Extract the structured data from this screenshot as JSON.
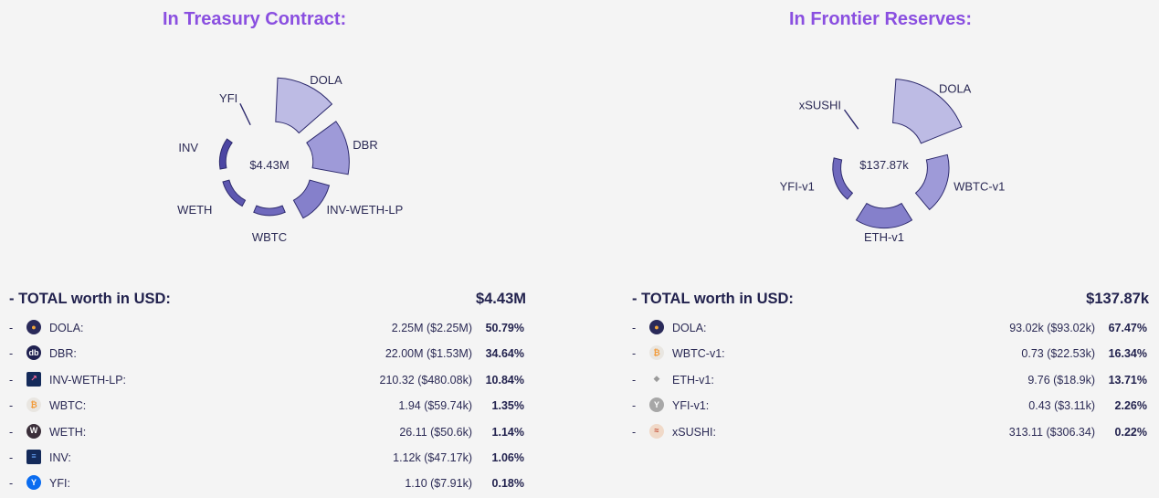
{
  "treasury": {
    "title": "In Treasury Contract:",
    "total_label": "- TOTAL worth in USD:",
    "total_value": "$4.43M",
    "rows": [
      {
        "name": "DOLA:",
        "amount": "2.25M ($2.25M)",
        "percent": "50.79%",
        "icon": "dola-icon"
      },
      {
        "name": "DBR:",
        "amount": "22.00M ($1.53M)",
        "percent": "34.64%",
        "icon": "dbr-icon"
      },
      {
        "name": "INV-WETH-LP:",
        "amount": "210.32 ($480.08k)",
        "percent": "10.84%",
        "icon": "inv-weth-lp-icon"
      },
      {
        "name": "WBTC:",
        "amount": "1.94 ($59.74k)",
        "percent": "1.35%",
        "icon": "wbtc-icon"
      },
      {
        "name": "WETH:",
        "amount": "26.11 ($50.6k)",
        "percent": "1.14%",
        "icon": "weth-icon"
      },
      {
        "name": "INV:",
        "amount": "1.12k ($47.17k)",
        "percent": "1.06%",
        "icon": "inv-icon"
      },
      {
        "name": "YFI:",
        "amount": "1.10 ($7.91k)",
        "percent": "0.18%",
        "icon": "yfi-icon"
      }
    ]
  },
  "frontier": {
    "title": "In Frontier Reserves:",
    "total_label": "- TOTAL worth in USD:",
    "total_value": "$137.87k",
    "rows": [
      {
        "name": "DOLA:",
        "amount": "93.02k ($93.02k)",
        "percent": "67.47%",
        "icon": "dola-icon"
      },
      {
        "name": "WBTC-v1:",
        "amount": "0.73 ($22.53k)",
        "percent": "16.34%",
        "icon": "wbtc-icon"
      },
      {
        "name": "ETH-v1:",
        "amount": "9.76 ($18.9k)",
        "percent": "13.71%",
        "icon": "eth-icon"
      },
      {
        "name": "YFI-v1:",
        "amount": "0.43 ($3.11k)",
        "percent": "2.26%",
        "icon": "yfi-v1-icon"
      },
      {
        "name": "xSUSHI:",
        "amount": "313.11 ($306.34)",
        "percent": "0.22%",
        "icon": "xsushi-icon"
      }
    ]
  },
  "chart_data": [
    {
      "type": "pie",
      "title": "In Treasury Contract:",
      "center_label": "$4.43M",
      "slices": [
        {
          "label": "DOLA",
          "value": 50.79
        },
        {
          "label": "DBR",
          "value": 34.64
        },
        {
          "label": "INV-WETH-LP",
          "value": 10.84
        },
        {
          "label": "WBTC",
          "value": 1.35
        },
        {
          "label": "WETH",
          "value": 1.14
        },
        {
          "label": "INV",
          "value": 1.06
        },
        {
          "label": "YFI",
          "value": 0.18
        }
      ]
    },
    {
      "type": "pie",
      "title": "In Frontier Reserves:",
      "center_label": "$137.87k",
      "slices": [
        {
          "label": "DOLA",
          "value": 67.47
        },
        {
          "label": "WBTC-v1",
          "value": 16.34
        },
        {
          "label": "ETH-v1",
          "value": 13.71
        },
        {
          "label": "YFI-v1",
          "value": 2.26
        },
        {
          "label": "xSUSHI",
          "value": 0.22
        }
      ]
    }
  ],
  "colors": {
    "title": "#8a4fe0",
    "slice_fills": [
      "#bdbbe4",
      "#9e9ad8",
      "#8580cb",
      "#6f69bd",
      "#5d57b0",
      "#4c46a3",
      "#3f3a96"
    ],
    "slice_stroke": "#2e2b6e"
  }
}
